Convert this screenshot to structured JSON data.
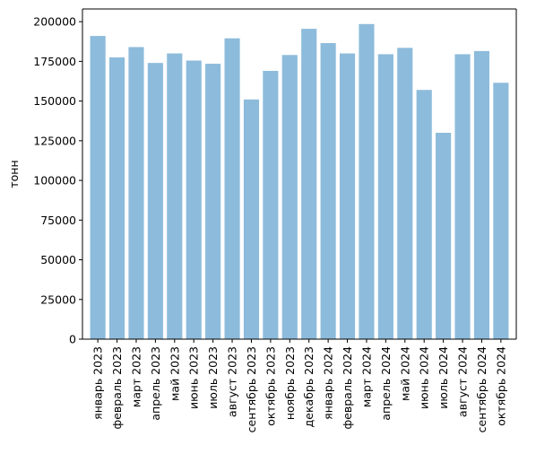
{
  "chart_data": {
    "type": "bar",
    "title": "",
    "xlabel": "",
    "ylabel": "тонн",
    "ylim": [
      0,
      208000
    ],
    "yticks": [
      0,
      25000,
      50000,
      75000,
      100000,
      125000,
      150000,
      175000,
      200000
    ],
    "grid": false,
    "bar_color": "#8dbbdb",
    "categories": [
      "январь 2023",
      "февраль 2023",
      "март 2023",
      "апрель 2023",
      "май 2023",
      "июнь 2023",
      "июль 2023",
      "август 2023",
      "сентябрь 2023",
      "октябрь 2023",
      "ноябрь 2023",
      "декабрь 2023",
      "январь 2024",
      "февраль 2024",
      "март 2024",
      "апрель 2024",
      "май 2024",
      "июнь 2024",
      "июль 2024",
      "август 2024",
      "сентябрь 2024",
      "октябрь 2024"
    ],
    "values": [
      191000,
      177500,
      184000,
      174000,
      180000,
      175500,
      173500,
      189500,
      151000,
      169000,
      179000,
      195500,
      186500,
      180000,
      198500,
      179500,
      183500,
      157000,
      130000,
      179500,
      181500,
      161500
    ]
  }
}
